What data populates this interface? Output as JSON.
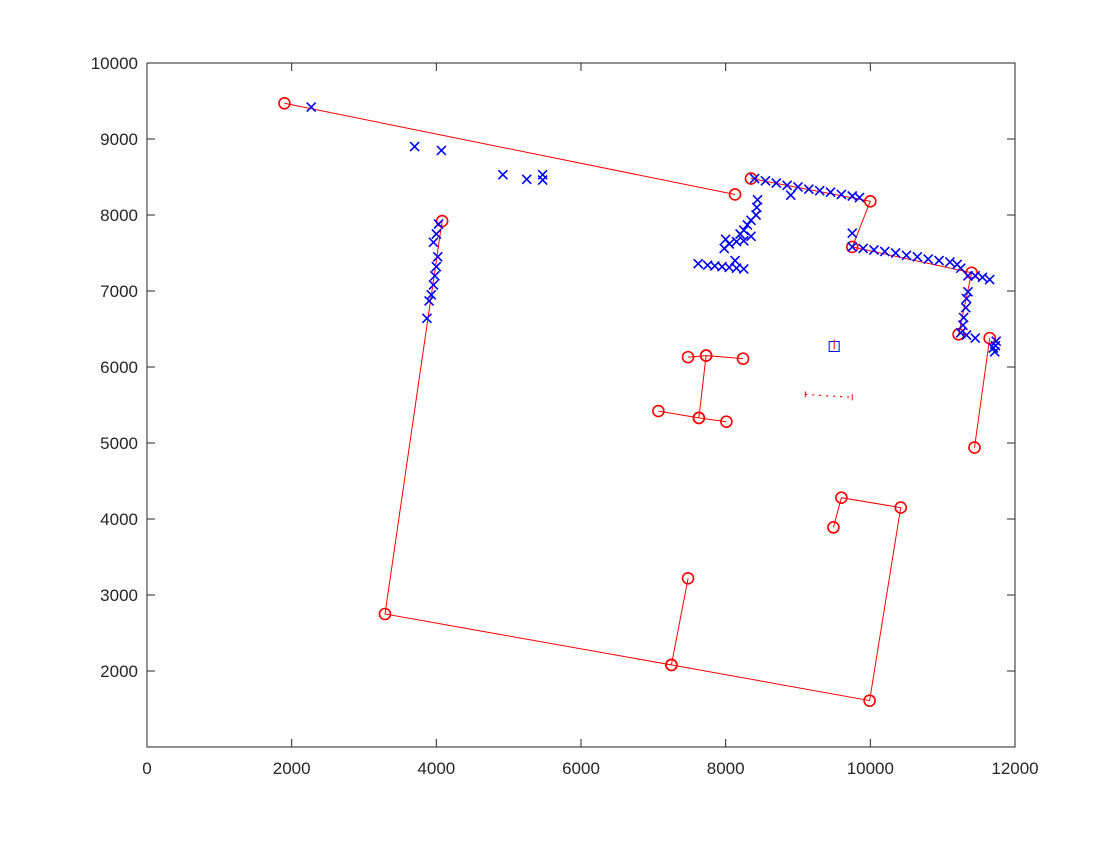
{
  "chart_data": {
    "type": "line",
    "title": "",
    "xlabel": "",
    "ylabel": "",
    "xlim": [
      0,
      12000
    ],
    "ylim": [
      1000,
      10000
    ],
    "x_ticks": [
      0,
      2000,
      4000,
      6000,
      8000,
      10000,
      12000
    ],
    "y_ticks": [
      2000,
      3000,
      4000,
      5000,
      6000,
      7000,
      8000,
      9000,
      10000
    ],
    "x_tick_labels": [
      "0",
      "2000",
      "4000",
      "6000",
      "8000",
      "10000",
      "12000"
    ],
    "y_tick_labels": [
      "2000",
      "3000",
      "4000",
      "5000",
      "6000",
      "7000",
      "8000",
      "9000",
      "10000"
    ],
    "grid": false,
    "colors": {
      "path": "#ff0000",
      "observation": "#0000ff",
      "axis": "#262626"
    },
    "series": [
      {
        "style": "red line with circle markers",
        "segments": [
          [
            [
              1900,
              9470
            ],
            [
              8130,
              8270
            ]
          ],
          [
            [
              8350,
              8480
            ],
            [
              10000,
              8180
            ],
            [
              9750,
              7580
            ],
            [
              11400,
              7240
            ],
            [
              11220,
              6430
            ]
          ],
          [
            [
              11650,
              6380
            ],
            [
              11440,
              4940
            ]
          ],
          [
            [
              4080,
              7920
            ],
            [
              3290,
              2750
            ],
            [
              7250,
              2080
            ],
            [
              7480,
              3220
            ]
          ],
          [
            [
              7250,
              2080
            ],
            [
              9990,
              1610
            ],
            [
              10420,
              4150
            ],
            [
              9600,
              4280
            ],
            [
              9490,
              3890
            ]
          ],
          [
            [
              7480,
              6130
            ],
            [
              7730,
              6150
            ],
            [
              8240,
              6110
            ]
          ],
          [
            [
              7730,
              6150
            ],
            [
              7630,
              5330
            ],
            [
              7070,
              5420
            ]
          ],
          [
            [
              7630,
              5330
            ],
            [
              8010,
              5280
            ]
          ]
        ]
      },
      {
        "style": "blue x markers",
        "points": [
          [
            2270,
            9420
          ],
          [
            3700,
            8900
          ],
          [
            4070,
            8850
          ],
          [
            4920,
            8530
          ],
          [
            5250,
            8470
          ],
          [
            5470,
            8460
          ],
          [
            5470,
            8530
          ],
          [
            3870,
            6640
          ],
          [
            3900,
            6870
          ],
          [
            3930,
            6950
          ],
          [
            3960,
            7080
          ],
          [
            3980,
            7200
          ],
          [
            4000,
            7320
          ],
          [
            4020,
            7450
          ],
          [
            3960,
            7640
          ],
          [
            4000,
            7750
          ],
          [
            4030,
            7880
          ],
          [
            8400,
            8480
          ],
          [
            8550,
            8450
          ],
          [
            8700,
            8420
          ],
          [
            8850,
            8390
          ],
          [
            8900,
            8260
          ],
          [
            9000,
            8370
          ],
          [
            9150,
            8340
          ],
          [
            9300,
            8320
          ],
          [
            9450,
            8300
          ],
          [
            9600,
            8270
          ],
          [
            9750,
            8250
          ],
          [
            9850,
            8230
          ],
          [
            7620,
            7360
          ],
          [
            7750,
            7340
          ],
          [
            7850,
            7330
          ],
          [
            7950,
            7320
          ],
          [
            8050,
            7310
          ],
          [
            8150,
            7300
          ],
          [
            8250,
            7290
          ],
          [
            8130,
            7400
          ],
          [
            7980,
            7560
          ],
          [
            8000,
            7680
          ],
          [
            8050,
            7620
          ],
          [
            8150,
            7650
          ],
          [
            8200,
            7750
          ],
          [
            8250,
            7800
          ],
          [
            8300,
            7870
          ],
          [
            8350,
            7930
          ],
          [
            8420,
            8000
          ],
          [
            8430,
            8100
          ],
          [
            8440,
            8200
          ],
          [
            8250,
            7660
          ],
          [
            8350,
            7720
          ],
          [
            9750,
            7760
          ],
          [
            9750,
            7580
          ],
          [
            9900,
            7560
          ],
          [
            10050,
            7540
          ],
          [
            10200,
            7520
          ],
          [
            10350,
            7500
          ],
          [
            10500,
            7470
          ],
          [
            10650,
            7450
          ],
          [
            10800,
            7420
          ],
          [
            10950,
            7400
          ],
          [
            11100,
            7380
          ],
          [
            11200,
            7350
          ],
          [
            11250,
            7300
          ],
          [
            11350,
            7200
          ],
          [
            11450,
            7200
          ],
          [
            11550,
            7180
          ],
          [
            11650,
            7150
          ],
          [
            11250,
            6450
          ],
          [
            11280,
            6550
          ],
          [
            11290,
            6650
          ],
          [
            11320,
            6780
          ],
          [
            11330,
            6900
          ],
          [
            11350,
            6990
          ],
          [
            11330,
            6420
          ],
          [
            11450,
            6380
          ],
          [
            11720,
            6200
          ],
          [
            11730,
            6280
          ],
          [
            11740,
            6340
          ],
          [
            11700,
            6250
          ]
        ]
      }
    ],
    "annotations": [
      {
        "style": "small blue rectangle with red mark",
        "x": 9500,
        "y": 6270
      },
      {
        "style": "red dotted short line",
        "x": [
          9100,
          9750
        ],
        "y": [
          5640,
          5600
        ]
      }
    ]
  }
}
